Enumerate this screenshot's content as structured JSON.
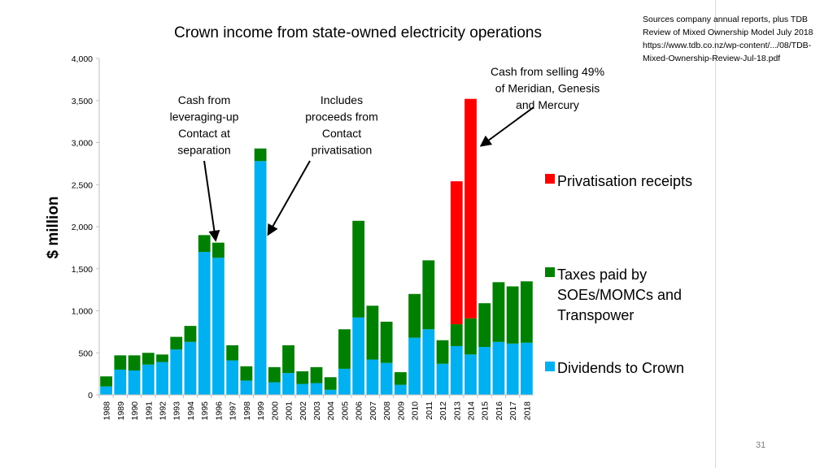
{
  "source_note": "Sources company annual reports, plus TDB Review of Mixed Ownership Model  July 2018 https://www.tdb.co.nz/wp-content/.../08/TDB-Mixed-Ownership-Review-Jul-18.pdf",
  "slide_number": "31",
  "colors": {
    "dividends": "#00b0f0",
    "taxes": "#008000",
    "privatisation": "#ff0000"
  },
  "chart_data": {
    "type": "bar",
    "stacked": true,
    "title": "Crown  income from state-owned electricity operations",
    "ylabel": "$ million",
    "xlabel": "",
    "ylim": [
      0,
      4000
    ],
    "yticks": [
      0,
      500,
      1000,
      1500,
      2000,
      2500,
      3000,
      3500,
      4000
    ],
    "ytick_labels": [
      "0",
      "500",
      "1,000",
      "1,500",
      "2,000",
      "2,500",
      "3,000",
      "3,500",
      "4,000"
    ],
    "grid": false,
    "categories": [
      "1988",
      "1989",
      "1990",
      "1991",
      "1992",
      "1993",
      "1994",
      "1995",
      "1996",
      "1997",
      "1998",
      "1999",
      "2000",
      "2001",
      "2002",
      "2003",
      "2004",
      "2005",
      "2006",
      "2007",
      "2008",
      "2009",
      "2010",
      "2011",
      "2012",
      "2013",
      "2014",
      "2015",
      "2016",
      "2017",
      "2018"
    ],
    "series": [
      {
        "name": "Dividends to Crown",
        "color": "#00b0f0",
        "values": [
          100,
          300,
          290,
          360,
          390,
          540,
          630,
          1700,
          1630,
          410,
          170,
          2780,
          150,
          260,
          130,
          140,
          60,
          310,
          920,
          420,
          380,
          120,
          680,
          780,
          370,
          580,
          480,
          570,
          630,
          610,
          620
        ]
      },
      {
        "name": "Taxes paid by SOEs/MOMCs and Transpower",
        "color": "#008000",
        "values": [
          120,
          170,
          180,
          140,
          90,
          150,
          190,
          200,
          180,
          180,
          170,
          150,
          180,
          330,
          150,
          190,
          150,
          470,
          1150,
          640,
          490,
          150,
          520,
          820,
          280,
          260,
          430,
          520,
          710,
          680,
          730
        ]
      },
      {
        "name": "Privatisation receipts",
        "color": "#ff0000",
        "values": [
          0,
          0,
          0,
          0,
          0,
          0,
          0,
          0,
          0,
          0,
          0,
          0,
          0,
          0,
          0,
          0,
          0,
          0,
          0,
          0,
          0,
          0,
          0,
          0,
          0,
          1700,
          2610,
          0,
          0,
          0,
          0
        ]
      }
    ],
    "legend": [
      {
        "lines": [
          "Privatisation receipts"
        ],
        "color": "#ff0000"
      },
      {
        "lines": [
          "Taxes paid by",
          "SOEs/MOMCs and",
          "Transpower"
        ],
        "color": "#008000"
      },
      {
        "lines": [
          "Dividends to Crown"
        ],
        "color": "#00b0f0"
      }
    ],
    "annotations": [
      {
        "lines": [
          "Cash from",
          "leveraging-up",
          "Contact at",
          "separation"
        ],
        "target_year": "1996"
      },
      {
        "lines": [
          "Includes",
          "proceeds from",
          "Contact",
          "privatisation"
        ],
        "target_year": "1999"
      },
      {
        "lines": [
          "Cash from selling 49%",
          "of Meridian, Genesis",
          "and Mercury"
        ],
        "target_year": "2014"
      }
    ]
  }
}
